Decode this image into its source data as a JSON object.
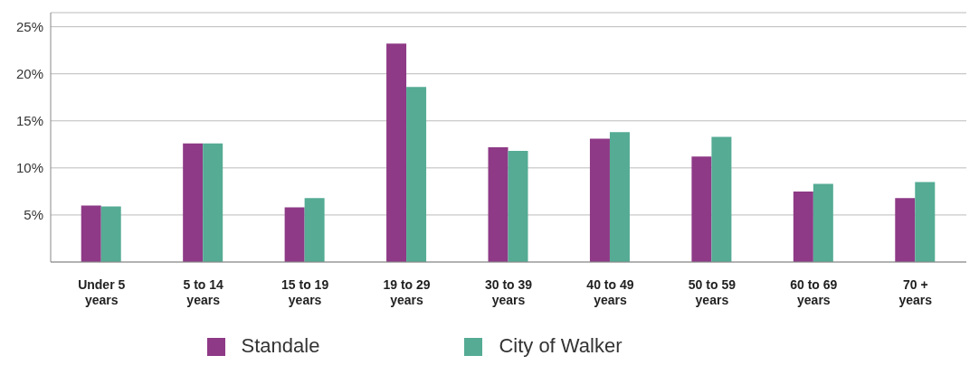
{
  "chart_data": {
    "type": "bar",
    "categories": [
      "Under 5 years",
      "5 to 14 years",
      "15 to 19 years",
      "19 to 29 years",
      "30 to 39 years",
      "40 to 49 years",
      "50 to 59 years",
      "60 to 69 years",
      "70 + years"
    ],
    "series": [
      {
        "name": "Standale",
        "color": "#8e3a86",
        "values": [
          6.0,
          12.6,
          5.8,
          23.2,
          12.2,
          13.1,
          11.2,
          7.5,
          6.8
        ]
      },
      {
        "name": "City of Walker",
        "color": "#55ab94",
        "values": [
          5.9,
          12.6,
          6.8,
          18.6,
          11.8,
          13.8,
          13.3,
          8.3,
          8.5
        ]
      }
    ],
    "ylim": [
      0,
      26.5
    ],
    "yticks": [
      {
        "value": 0,
        "label": null
      },
      {
        "value": 5,
        "label": "5%"
      },
      {
        "value": 10,
        "label": "10%"
      },
      {
        "value": 15,
        "label": "15%"
      },
      {
        "value": 20,
        "label": "20%"
      },
      {
        "value": 25,
        "label": "25%"
      }
    ],
    "grid": "y",
    "legend": "bottom"
  }
}
